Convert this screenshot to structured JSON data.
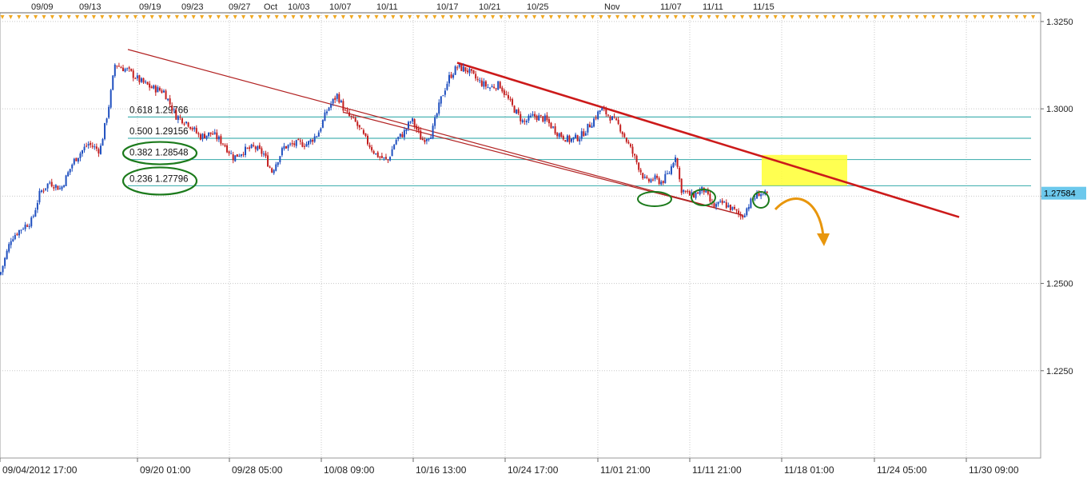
{
  "chart_data": {
    "type": "candlestick",
    "title": "",
    "xlabel": "",
    "ylabel": "",
    "ylim": [
      1.2,
      1.3275
    ],
    "y_ticks": [
      "1.2250",
      "1.2500",
      "1.2750",
      "1.3000",
      "1.3250"
    ],
    "top_date_labels": [
      "09/09",
      "09/13",
      "09/19",
      "09/23",
      "09/27",
      "Oct",
      "10/03",
      "10/07",
      "10/11",
      "10/17",
      "10/21",
      "10/25",
      "Nov",
      "11/07",
      "11/11",
      "11/15"
    ],
    "bottom_time_labels": [
      "09/04/2012 17:00",
      "09/20 01:00",
      "09/28 05:00",
      "10/08 09:00",
      "10/16 13:00",
      "10/24 17:00",
      "11/01 21:00",
      "11/11 21:00",
      "11/18 01:00",
      "11/24 05:00",
      "11/30 09:00"
    ],
    "current_price": "1.27584",
    "grid": true,
    "fibonacci_levels": [
      {
        "label": "0.618 1.29766",
        "ratio": 0.618,
        "price": 1.29766
      },
      {
        "label": "0.500 1.29156",
        "ratio": 0.5,
        "price": 1.29156
      },
      {
        "label": "0.382 1.28548",
        "ratio": 0.382,
        "price": 1.28548
      },
      {
        "label": "0.236 1.27796",
        "ratio": 0.236,
        "price": 1.27796
      }
    ],
    "price_path": [
      [
        0,
        1.2525
      ],
      [
        14,
        1.263
      ],
      [
        28,
        1.266
      ],
      [
        40,
        1.268
      ],
      [
        50,
        1.276
      ],
      [
        62,
        1.279
      ],
      [
        76,
        1.277
      ],
      [
        92,
        1.285
      ],
      [
        110,
        1.29
      ],
      [
        125,
        1.288
      ],
      [
        132,
        1.296
      ],
      [
        137,
        1.302
      ],
      [
        144,
        1.313
      ],
      [
        150,
        1.312
      ],
      [
        160,
        1.311
      ],
      [
        175,
        1.308
      ],
      [
        190,
        1.306
      ],
      [
        205,
        1.305
      ],
      [
        220,
        1.298
      ],
      [
        235,
        1.296
      ],
      [
        250,
        1.292
      ],
      [
        265,
        1.293
      ],
      [
        280,
        1.29
      ],
      [
        292,
        1.286
      ],
      [
        305,
        1.288
      ],
      [
        318,
        1.289
      ],
      [
        330,
        1.287
      ],
      [
        340,
        1.282
      ],
      [
        355,
        1.289
      ],
      [
        370,
        1.29
      ],
      [
        385,
        1.29
      ],
      [
        398,
        1.293
      ],
      [
        410,
        1.3
      ],
      [
        422,
        1.304
      ],
      [
        432,
        1.299
      ],
      [
        445,
        1.296
      ],
      [
        458,
        1.291
      ],
      [
        470,
        1.287
      ],
      [
        485,
        1.285
      ],
      [
        495,
        1.291
      ],
      [
        505,
        1.293
      ],
      [
        515,
        1.297
      ],
      [
        528,
        1.291
      ],
      [
        540,
        1.293
      ],
      [
        552,
        1.303
      ],
      [
        562,
        1.309
      ],
      [
        572,
        1.312
      ],
      [
        585,
        1.311
      ],
      [
        598,
        1.308
      ],
      [
        612,
        1.306
      ],
      [
        625,
        1.307
      ],
      [
        640,
        1.301
      ],
      [
        655,
        1.296
      ],
      [
        668,
        1.298
      ],
      [
        682,
        1.297
      ],
      [
        698,
        1.293
      ],
      [
        712,
        1.291
      ],
      [
        726,
        1.292
      ],
      [
        740,
        1.296
      ],
      [
        752,
        1.3
      ],
      [
        762,
        1.298
      ],
      [
        775,
        1.295
      ],
      [
        788,
        1.289
      ],
      [
        798,
        1.284
      ],
      [
        808,
        1.279
      ],
      [
        818,
        1.28
      ],
      [
        828,
        1.279
      ],
      [
        838,
        1.282
      ],
      [
        845,
        1.287
      ],
      [
        852,
        1.277
      ],
      [
        865,
        1.275
      ],
      [
        880,
        1.277
      ],
      [
        892,
        1.272
      ],
      [
        905,
        1.273
      ],
      [
        918,
        1.271
      ],
      [
        928,
        1.269
      ],
      [
        938,
        1.273
      ],
      [
        950,
        1.276
      ],
      [
        962,
        1.275
      ]
    ]
  },
  "overlays": {
    "channel_upper": {
      "color": "#b22222"
    },
    "channel_lower": {
      "color": "#b22222"
    },
    "resistance_trendline": {
      "color": "#cc1a1a"
    },
    "target_zone": {
      "color": "#ffff33"
    },
    "projection_arrow": {
      "color": "#e8960c"
    },
    "highlight_ellipses": {
      "color": "#1b7a1b"
    },
    "fib_line_color": "#4bb3b3",
    "bull_candle_color": "#1f4fbf",
    "bear_candle_color": "#c41e1e"
  }
}
